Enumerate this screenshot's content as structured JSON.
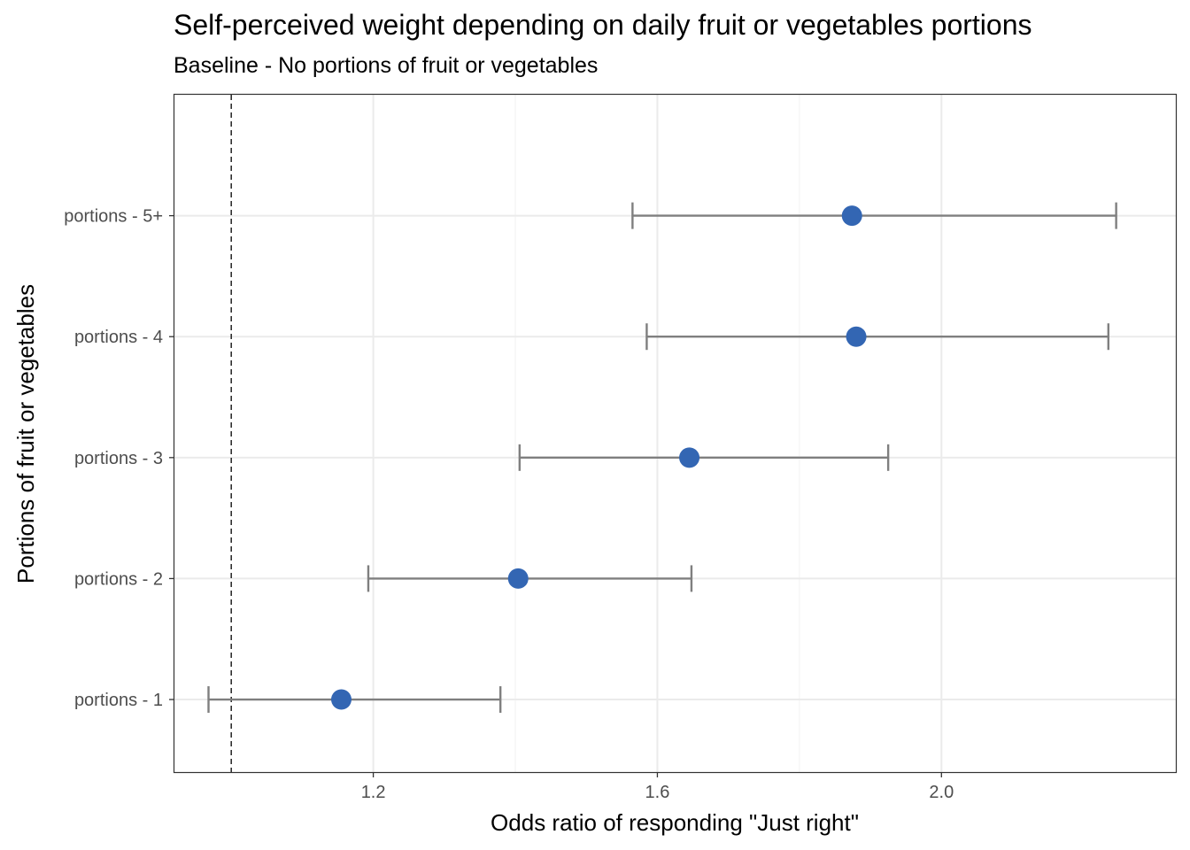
{
  "chart_data": {
    "type": "scatter",
    "title": "Self-perceived weight depending on daily fruit or vegetables portions",
    "subtitle": "Baseline - No portions of fruit or vegetables",
    "xlabel": "Odds ratio of responding \"Just right\"",
    "ylabel": "Portions of fruit or vegetables",
    "xlim": [
      0.92,
      2.33
    ],
    "x_ticks": [
      1.2,
      1.6,
      2.0
    ],
    "x_tick_labels": [
      "1.2",
      "1.6",
      "2.0"
    ],
    "reference_line": 1.0,
    "grid": true,
    "categories": [
      "portions - 1",
      "portions - 2",
      "portions - 3",
      "portions - 4",
      "portions - 5+"
    ],
    "estimates": [
      1.155,
      1.404,
      1.645,
      1.88,
      1.874
    ],
    "ci_low": [
      0.968,
      1.193,
      1.406,
      1.585,
      1.565
    ],
    "ci_high": [
      1.379,
      1.648,
      1.925,
      2.235,
      2.246
    ],
    "point_color": "#3366b3",
    "errorbar_color": "#7f7f7f"
  }
}
